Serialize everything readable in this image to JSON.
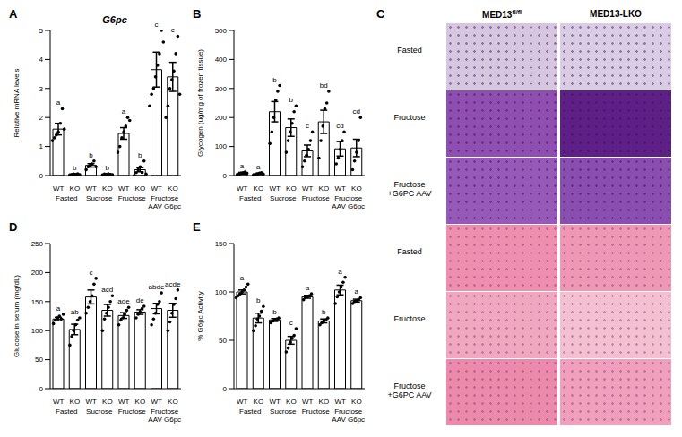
{
  "chart_data": [
    {
      "panel": "A",
      "type": "bar",
      "title": "G6pc",
      "y_label": "Relative mRNA levels",
      "color": "#000000",
      "categories": [
        "WT",
        "KO",
        "WT",
        "KO",
        "WT",
        "KO",
        "WT",
        "KO"
      ],
      "groups": [
        "Fasted",
        "Sucrose",
        "Fructose",
        "Fructose\nAAV G6pc"
      ],
      "values": [
        1.6,
        0.05,
        0.35,
        0.05,
        1.45,
        0.2,
        3.65,
        3.4
      ],
      "errors": [
        0.2,
        0.01,
        0.06,
        0.01,
        0.2,
        0.07,
        0.6,
        0.5
      ],
      "points": [
        [
          1.2,
          1.3,
          1.4,
          1.5,
          1.8,
          2.3,
          1.6
        ],
        [
          0.02,
          0.03,
          0.05,
          0.04,
          0.06,
          0.03
        ],
        [
          0.2,
          0.3,
          0.35,
          0.4,
          0.5,
          0.3
        ],
        [
          0.02,
          0.05,
          0.03,
          0.06,
          0.04,
          0.03
        ],
        [
          0.8,
          1.0,
          1.3,
          1.5,
          1.7,
          2.0,
          1.9
        ],
        [
          0.0,
          0.1,
          0.2,
          0.3,
          0.1,
          0.5,
          0.05
        ],
        [
          2.4,
          2.8,
          3.0,
          3.4,
          3.8,
          4.2,
          5.0,
          4.6
        ],
        [
          2.0,
          2.4,
          3.0,
          3.3,
          3.6,
          4.2,
          4.8,
          2.8
        ]
      ],
      "letters": [
        "a",
        "b",
        "b",
        "b",
        "a",
        "b",
        "c",
        "c"
      ],
      "ylim": [
        0,
        5
      ],
      "yticks": [
        0,
        1,
        2,
        3,
        4,
        5
      ]
    },
    {
      "panel": "B",
      "type": "bar",
      "y_label": "Glycogen (ug/mg of frozen tissue)",
      "color": "#000000",
      "categories": [
        "WT",
        "KO",
        "WT",
        "KO",
        "WT",
        "KO",
        "WT",
        "KO"
      ],
      "groups": [
        "Fasted",
        "Sucrose",
        "Fructose",
        "Fructose\nAAV G6pc"
      ],
      "values": [
        8,
        6,
        220,
        165,
        85,
        185,
        92,
        95
      ],
      "errors": [
        3,
        2,
        35,
        30,
        20,
        40,
        25,
        30
      ],
      "points": [
        [
          2,
          5,
          8,
          10,
          12,
          8
        ],
        [
          2,
          4,
          6,
          8,
          10,
          5
        ],
        [
          110,
          150,
          200,
          260,
          290,
          310
        ],
        [
          80,
          120,
          150,
          180,
          220,
          240
        ],
        [
          30,
          50,
          70,
          90,
          120,
          150
        ],
        [
          60,
          120,
          170,
          230,
          250,
          290
        ],
        [
          40,
          60,
          90,
          120,
          150
        ],
        [
          20,
          50,
          80,
          120,
          200
        ]
      ],
      "letters": [
        "a",
        "a",
        "b",
        "b",
        "c",
        "bd",
        "cd",
        "cd"
      ],
      "ylim": [
        0,
        500
      ],
      "yticks": [
        0,
        100,
        200,
        300,
        400,
        500
      ]
    },
    {
      "panel": "D",
      "type": "bar",
      "y_label": "Glucose in serum (mg/dL)",
      "color": "#000000",
      "categories": [
        "WT",
        "KO",
        "WT",
        "KO",
        "WT",
        "KO",
        "WT",
        "KO"
      ],
      "groups": [
        "Fasted",
        "Sucrose",
        "Fructose",
        "Fructose\nAAV G6pc"
      ],
      "values": [
        120,
        102,
        158,
        135,
        126,
        132,
        138,
        135
      ],
      "errors": [
        3,
        9,
        12,
        10,
        5,
        4,
        9,
        12
      ],
      "points": [
        [
          112,
          118,
          122,
          125,
          120,
          128
        ],
        [
          75,
          90,
          100,
          110,
          118,
          122
        ],
        [
          130,
          140,
          150,
          160,
          180,
          190
        ],
        [
          100,
          120,
          130,
          140,
          150,
          160
        ],
        [
          110,
          118,
          122,
          128,
          135,
          140
        ],
        [
          122,
          128,
          132,
          138,
          142
        ],
        [
          110,
          120,
          130,
          145,
          150,
          165
        ],
        [
          100,
          115,
          130,
          145,
          155,
          170
        ]
      ],
      "letters": [
        "a",
        "ab",
        "c",
        "acd",
        "ade",
        "de",
        "abde",
        "acde"
      ],
      "ylim": [
        0,
        250
      ],
      "yticks": [
        0,
        50,
        100,
        150,
        200,
        250
      ]
    },
    {
      "panel": "E",
      "type": "bar",
      "y_label": "% G6pc Activity",
      "color": "#000000",
      "categories": [
        "WT",
        "KO",
        "WT",
        "KO",
        "WT",
        "KO",
        "WT",
        "KO"
      ],
      "groups": [
        "Fasted",
        "Sucrose",
        "Fructose",
        "Fructose\nAAV G6pc"
      ],
      "values": [
        100,
        73,
        71,
        50,
        95,
        70,
        102,
        91
      ],
      "errors": [
        2,
        5,
        1.5,
        4,
        1.5,
        2,
        5,
        1.5
      ],
      "points": [
        [
          94,
          96,
          98,
          100,
          102,
          105,
          108
        ],
        [
          60,
          65,
          72,
          75,
          80,
          85
        ],
        [
          68,
          70,
          71,
          72,
          73
        ],
        [
          38,
          42,
          48,
          52,
          55,
          62
        ],
        [
          92,
          94,
          95,
          96,
          98
        ],
        [
          66,
          68,
          70,
          71,
          73
        ],
        [
          88,
          95,
          100,
          105,
          110,
          115
        ],
        [
          88,
          90,
          91,
          92,
          94
        ]
      ],
      "letters": [
        "a",
        "b",
        "b",
        "c",
        "a",
        "b",
        "a",
        "a"
      ],
      "ylim": [
        0,
        150
      ],
      "yticks": [
        0,
        50,
        100,
        150
      ]
    }
  ],
  "image_panel": {
    "panel": "C",
    "columns": [
      "MED13 fl/fl",
      "MED13-LKO"
    ],
    "blocks": [
      [
        "Fasted",
        "Fructose",
        "Fructose\n+G6PC AAV"
      ],
      [
        "Fasted",
        "Fructose",
        "Fructose\n+G6PC AAV"
      ]
    ]
  }
}
